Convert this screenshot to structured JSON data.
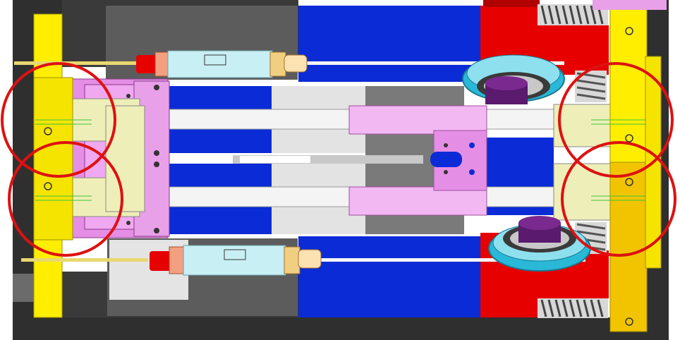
{
  "diagram": {
    "kind": "mechanical-cad-section",
    "text_labels": [],
    "colors": {
      "frame_dark": "#2e2e2e",
      "plate_yellow": "#ffee00",
      "plate_yellow_shadow": "#c8b800",
      "pink": "#e58ee5",
      "pink_light": "#f2b8f2",
      "blue": "#0a2bd6",
      "red": "#e60000",
      "gray_dark": "#5a5a5a",
      "gray_light": "#d9d9d9",
      "cream": "#eeeeb8",
      "cyan": "#bff0f5",
      "teal": "#29b8d8",
      "purple": "#5a1a6e",
      "rod_white": "#f4f4f4",
      "highlight_circle": "#dd1111"
    },
    "highlight_circles": 4,
    "gas_springs": 2,
    "guide_rollers": 2
  }
}
